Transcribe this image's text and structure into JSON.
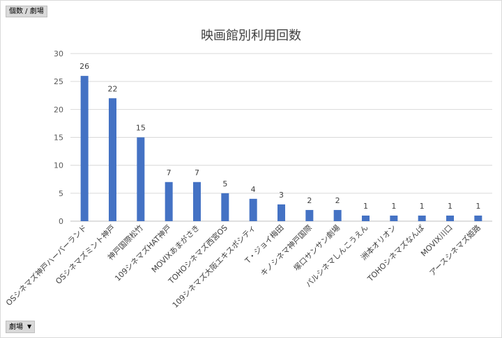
{
  "pivot": {
    "value_field": "個数 / 劇場",
    "axis_field": "劇場"
  },
  "colors": {
    "bar": "#4472c4",
    "grid": "#d9d9d9",
    "text": "#404040"
  },
  "chart_data": {
    "type": "bar",
    "title": "映画館別利用回数",
    "xlabel": "",
    "ylabel": "",
    "ylim": [
      0,
      30
    ],
    "yticks": [
      0,
      5,
      10,
      15,
      20,
      25,
      30
    ],
    "grid": true,
    "legend": "none",
    "categories": [
      "OSシネマズ神戸ハーバーランド",
      "OSシネマズミント神戸",
      "神戸国際松竹",
      "109シネマズHAT神戸",
      "MOVIXあまがさき",
      "TOHOシネマズ西宮OS",
      "109シネマズ大阪エキスポシティ",
      "T・ジョイ梅田",
      "キノシネマ神戸国際",
      "塚口サンサン劇場",
      "パルシネマしんこうえん",
      "洲本オリオン",
      "TOHOシネマズなんば",
      "MOVIX川口",
      "アースシネマズ姫路"
    ],
    "values": [
      26,
      22,
      15,
      7,
      7,
      5,
      4,
      3,
      2,
      2,
      1,
      1,
      1,
      1,
      1
    ]
  }
}
